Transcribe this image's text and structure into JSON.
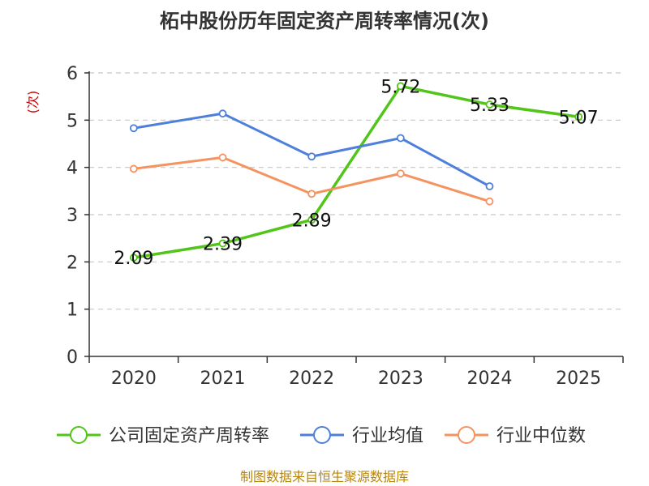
{
  "chart_data": {
    "type": "line",
    "title": "柘中股份历年固定资产周转率情况(次)",
    "ylabel": "(次)",
    "xlabel": "",
    "categories": [
      "2020",
      "2021",
      "2022",
      "2023",
      "2024",
      "2025"
    ],
    "ylim": [
      0,
      6
    ],
    "yticks": [
      0,
      1,
      2,
      3,
      4,
      5,
      6
    ],
    "grid": true,
    "legend_position": "bottom",
    "series": [
      {
        "name": "公司固定资产周转率",
        "color": "#52c41a",
        "values": [
          2.09,
          2.39,
          2.89,
          5.72,
          5.33,
          5.07
        ],
        "labels": [
          "2.09",
          "2.39",
          "2.89",
          "5.72",
          "5.33",
          "5.07"
        ],
        "show_labels": true
      },
      {
        "name": "行业均值",
        "color": "#4e7fdb",
        "values": [
          4.83,
          5.14,
          4.23,
          4.62,
          3.6,
          null
        ],
        "show_labels": false
      },
      {
        "name": "行业中位数",
        "color": "#f59360",
        "values": [
          3.97,
          4.21,
          3.44,
          3.87,
          3.28,
          null
        ],
        "show_labels": false
      }
    ],
    "source": "制图数据来自恒生聚源数据库"
  }
}
